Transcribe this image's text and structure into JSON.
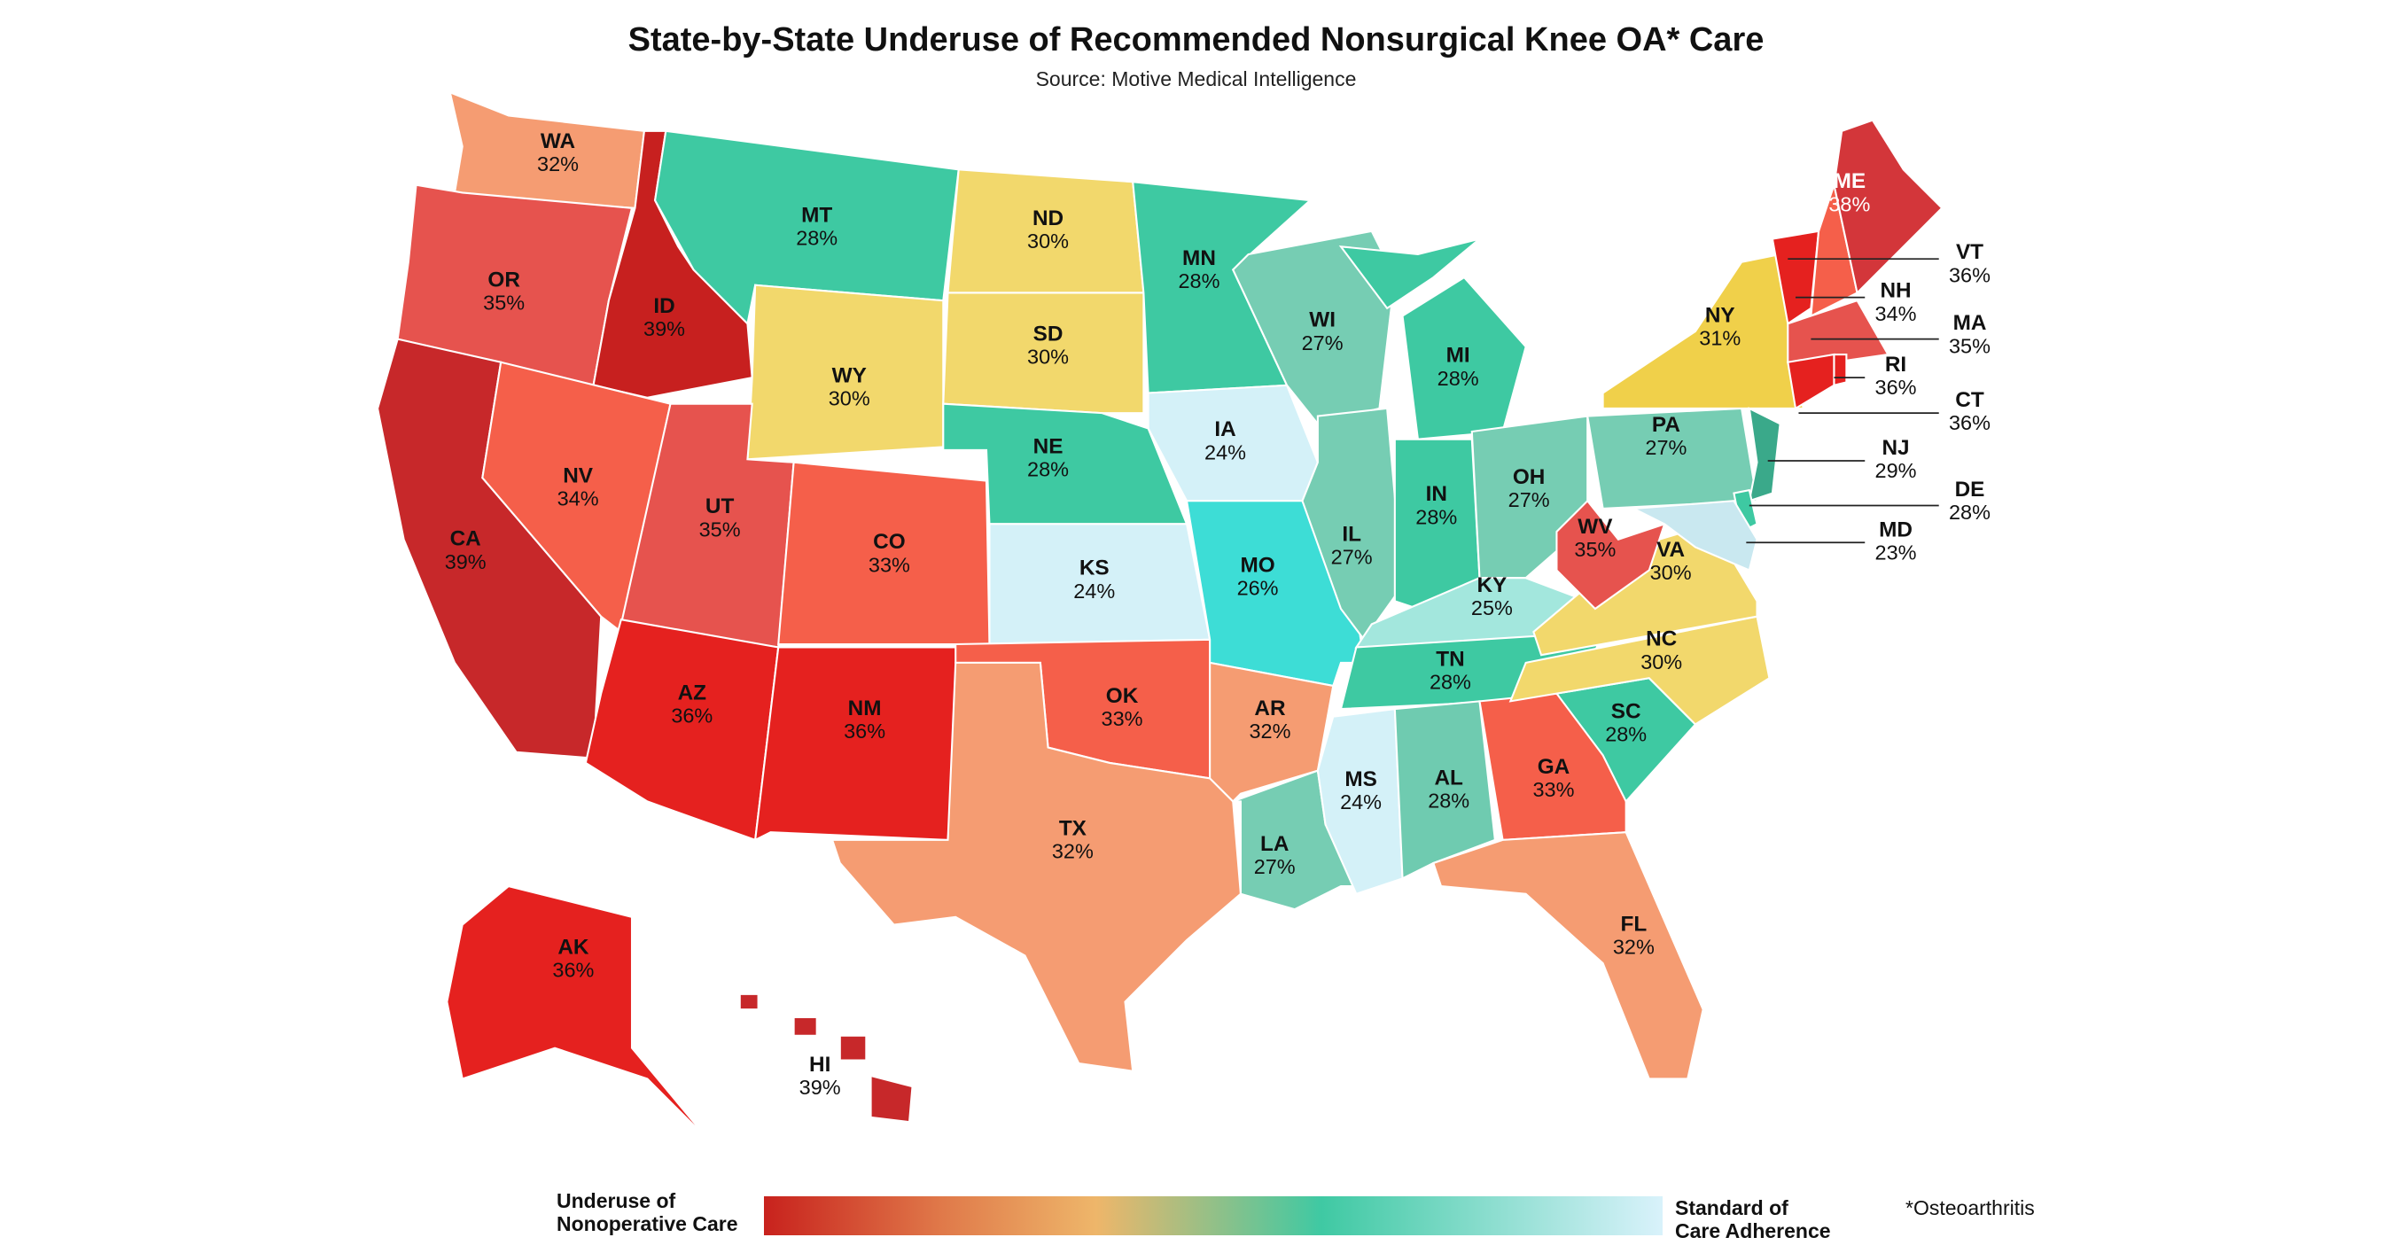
{
  "title": "State-by-State Underuse of Recommended Nonsurgical Knee OA* Care",
  "subtitle": "Source: Motive Medical Intelligence",
  "legend": {
    "left_label_line1": "Underuse of",
    "left_label_line2": "Nonoperative Care",
    "right_label_line1": "Standard of",
    "right_label_line2": "Care Adherence",
    "gradient_colors": [
      "#c8221d",
      "#e07a4a",
      "#eeb66a",
      "#3fc9a3",
      "#d9f2fb"
    ]
  },
  "footnote": "*Osteoarthritis",
  "states": [
    {
      "code": "WA",
      "value": "32%",
      "color": "#f59c72"
    },
    {
      "code": "OR",
      "value": "35%",
      "color": "#e6534e"
    },
    {
      "code": "ID",
      "value": "39%",
      "color": "#c7201f"
    },
    {
      "code": "MT",
      "value": "28%",
      "color": "#3ec9a2"
    },
    {
      "code": "WY",
      "value": "30%",
      "color": "#f2d86c"
    },
    {
      "code": "ND",
      "value": "30%",
      "color": "#f2d86c"
    },
    {
      "code": "SD",
      "value": "30%",
      "color": "#f2d86c"
    },
    {
      "code": "NE",
      "value": "28%",
      "color": "#3ec9a2"
    },
    {
      "code": "CA",
      "value": "39%",
      "color": "#c7282a"
    },
    {
      "code": "NV",
      "value": "34%",
      "color": "#f55f4a"
    },
    {
      "code": "UT",
      "value": "35%",
      "color": "#e6534e"
    },
    {
      "code": "CO",
      "value": "33%",
      "color": "#f55f4a"
    },
    {
      "code": "AZ",
      "value": "36%",
      "color": "#e5211f"
    },
    {
      "code": "NM",
      "value": "36%",
      "color": "#e5211f"
    },
    {
      "code": "KS",
      "value": "24%",
      "color": "#d4f1f8"
    },
    {
      "code": "OK",
      "value": "33%",
      "color": "#f55f4a"
    },
    {
      "code": "TX",
      "value": "32%",
      "color": "#f59c72"
    },
    {
      "code": "MN",
      "value": "28%",
      "color": "#3ec9a2"
    },
    {
      "code": "IA",
      "value": "24%",
      "color": "#d4f1f8"
    },
    {
      "code": "MO",
      "value": "26%",
      "color": "#3dddd6"
    },
    {
      "code": "AR",
      "value": "32%",
      "color": "#f59c72"
    },
    {
      "code": "LA",
      "value": "27%",
      "color": "#76cdb3"
    },
    {
      "code": "WI",
      "value": "27%",
      "color": "#76cdb3"
    },
    {
      "code": "IL",
      "value": "27%",
      "color": "#76cdb3"
    },
    {
      "code": "MI",
      "value": "28%",
      "color": "#3ec9a2"
    },
    {
      "code": "IN",
      "value": "28%",
      "color": "#3ec9a2"
    },
    {
      "code": "OH",
      "value": "27%",
      "color": "#76cdb3"
    },
    {
      "code": "KY",
      "value": "25%",
      "color": "#a3e7dd"
    },
    {
      "code": "TN",
      "value": "28%",
      "color": "#3ec9a2"
    },
    {
      "code": "MS",
      "value": "24%",
      "color": "#d4f1f8"
    },
    {
      "code": "AL",
      "value": "28%",
      "color": "#6fcbb0"
    },
    {
      "code": "GA",
      "value": "33%",
      "color": "#f55f4a"
    },
    {
      "code": "FL",
      "value": "32%",
      "color": "#f59c72"
    },
    {
      "code": "SC",
      "value": "28%",
      "color": "#3ec9a2"
    },
    {
      "code": "NC",
      "value": "30%",
      "color": "#f2d86c"
    },
    {
      "code": "VA",
      "value": "30%",
      "color": "#f2d86c"
    },
    {
      "code": "WV",
      "value": "35%",
      "color": "#e6534e"
    },
    {
      "code": "PA",
      "value": "27%",
      "color": "#76cdb3"
    },
    {
      "code": "NY",
      "value": "31%",
      "color": "#f0d04a"
    },
    {
      "code": "NJ",
      "value": "29%",
      "color": "#3aa98a"
    },
    {
      "code": "DE",
      "value": "28%",
      "color": "#3ec9a2"
    },
    {
      "code": "MD",
      "value": "23%",
      "color": "#c9e8f0"
    },
    {
      "code": "VT",
      "value": "36%",
      "color": "#e5211f"
    },
    {
      "code": "NH",
      "value": "34%",
      "color": "#f55f4a"
    },
    {
      "code": "ME",
      "value": "38%",
      "color": "#d3363a"
    },
    {
      "code": "MA",
      "value": "35%",
      "color": "#e6534e"
    },
    {
      "code": "CT",
      "value": "36%",
      "color": "#e5211f"
    },
    {
      "code": "RI",
      "value": "36%",
      "color": "#e5211f"
    },
    {
      "code": "AK",
      "value": "36%",
      "color": "#e5211f"
    },
    {
      "code": "HI",
      "value": "39%",
      "color": "#c7282a"
    }
  ]
}
